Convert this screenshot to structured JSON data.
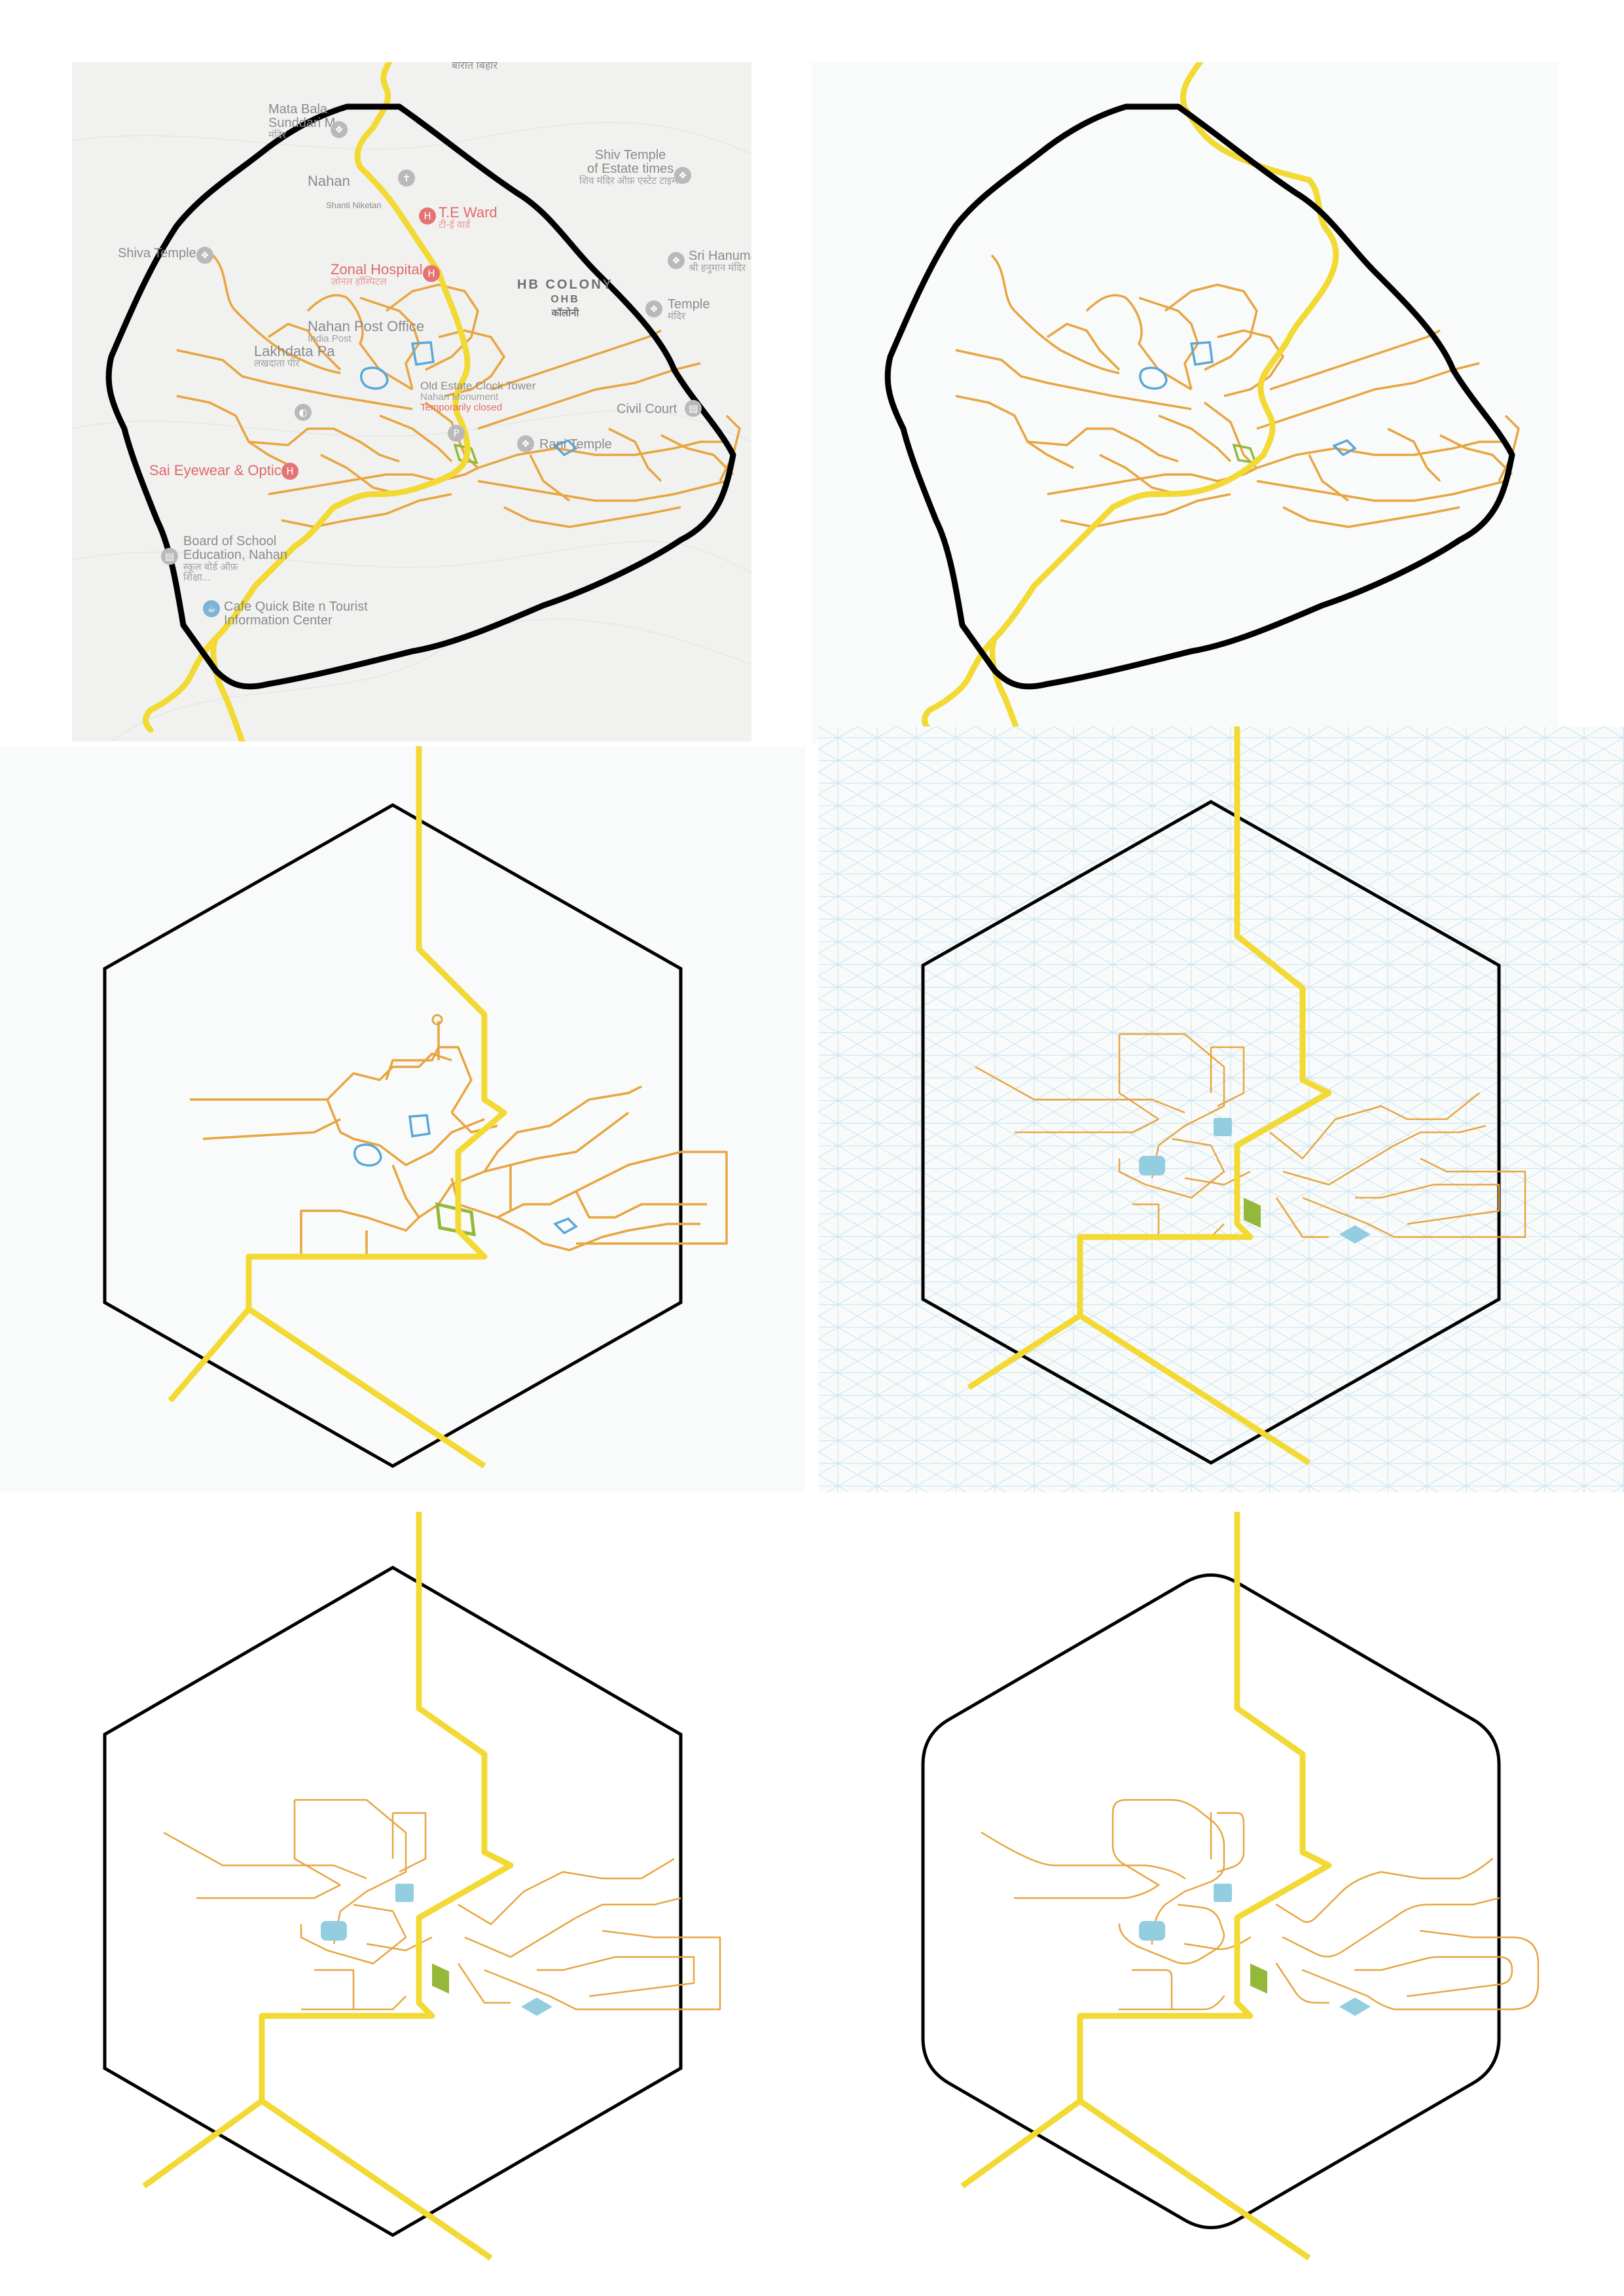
{
  "colors": {
    "road": "#f3d933",
    "street": "#e8a540",
    "boundary": "#000000",
    "water": "#93cde0",
    "park": "#93b83a",
    "map_bg": "#f1f2f0",
    "panel_bg": "#f9fbfb",
    "grid": "#cfe6f0"
  },
  "panels": [
    {
      "id": "p1",
      "caption": "base map with traced network"
    },
    {
      "id": "p2",
      "caption": "traced network"
    },
    {
      "id": "p3",
      "caption": "hexagonal abstraction"
    },
    {
      "id": "p4",
      "caption": "isometric grid abstraction"
    },
    {
      "id": "p5",
      "caption": "isometric abstraction"
    },
    {
      "id": "p6",
      "caption": "rounded hexagon abstraction"
    }
  ],
  "map_labels": {
    "top_road": "बारात बिहार",
    "mata_bala": "Mata Bala",
    "mata_bala_2": "Sunddari M",
    "mata_bala_dev": "मंदिर",
    "nahan": "Nahan",
    "shanti": "Shanti Niketan",
    "te_ward": "T.E Ward",
    "te_ward_dev": "टी-ई वार्ड",
    "shiv_temple_estate": "Shiv Temple",
    "shiv_temple_estate_2": "of Estate times",
    "shiv_temple_estate_dev": "शिव मंदिर ऑफ़ एस्टेट टाइम्स",
    "shiva_temple": "Shiva Temple",
    "zonal_hospital": "Zonal Hospital",
    "zonal_hospital_dev": "ज़ोनल हॉस्पिटल",
    "hb_colony": "HB COLONY",
    "hb_colony_2": "OHB",
    "hb_colony_dev": "कॉलोनी",
    "sri_hanuman": "Sri Hanuman",
    "sri_hanuman_dev": "श्री हनुमान मंदिर",
    "temple": "Temple",
    "temple_dev": "मंदिर",
    "post_office": "Nahan Post Office",
    "post_office_2": "India Post",
    "lakhdata": "Lakhdata Pa",
    "lakhdata_dev": "लखदाता पीर",
    "clock_tower": "Old Estate Clock Tower",
    "clock_tower_2": "Nahan Monument",
    "clock_tower_3": "Temporarily closed",
    "court": "Civil Court",
    "rani_temple": "Rani Temple",
    "sai_eyewear": "Sai Eyewear & Optics",
    "board_school": "Board of School",
    "board_school_2": "Education, Nahan",
    "board_school_dev": "स्कूल बोर्ड ऑफ़",
    "board_school_dev_2": "शिक्षा...",
    "cafe": "Cafe Quick Bite n Tourist",
    "cafe_2": "Information Center"
  }
}
